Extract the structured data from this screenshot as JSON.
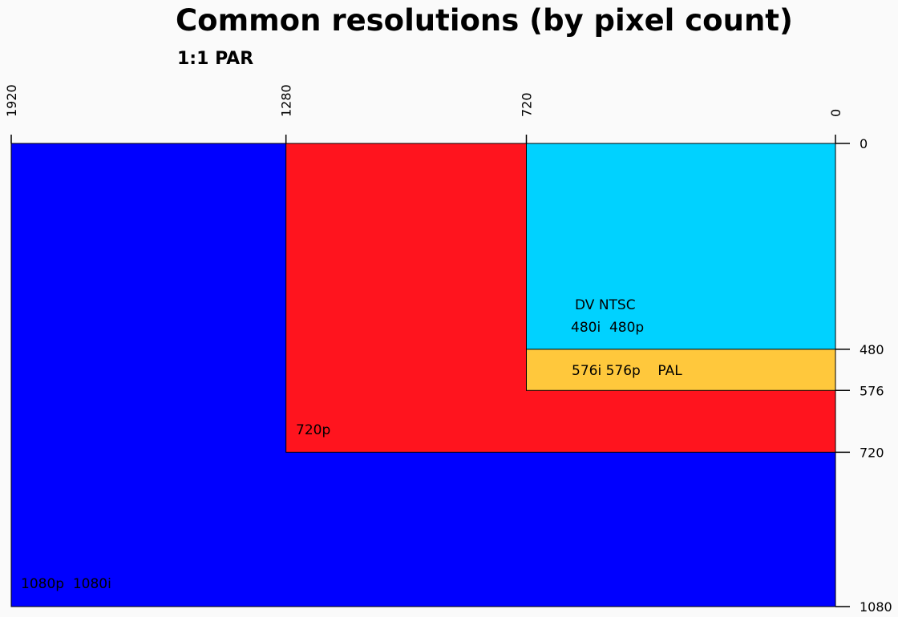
{
  "title": "Common resolutions (by pixel count)",
  "subtitle": "1:1 PAR",
  "colors": {
    "background": "#fafafa",
    "1080": "#0000ff",
    "720": "#ff141e",
    "576": "#ffc83c",
    "480": "#00d2ff"
  },
  "x_axis": {
    "ticks": [
      "1920",
      "1280",
      "720",
      "0"
    ],
    "direction": "reversed"
  },
  "y_axis": {
    "ticks": [
      "0",
      "480",
      "576",
      "720",
      "1080"
    ]
  },
  "chart_data": {
    "type": "nested-rectangles",
    "units": "pixels",
    "xlim": [
      1920,
      0
    ],
    "ylim": [
      0,
      1080
    ],
    "regions": [
      {
        "name": "1080",
        "width": 1920,
        "height": 1080,
        "color": "#0000ff",
        "labels": [
          "1080p  1080i"
        ]
      },
      {
        "name": "720",
        "width": 1280,
        "height": 720,
        "color": "#ff141e",
        "labels": [
          "720p"
        ]
      },
      {
        "name": "576",
        "width": 720,
        "height": 576,
        "color": "#ffc83c",
        "labels": [
          "576i 576p    PAL"
        ]
      },
      {
        "name": "480",
        "width": 720,
        "height": 480,
        "color": "#00d2ff",
        "labels": [
          "DV NTSC",
          "480i  480p"
        ]
      }
    ]
  }
}
